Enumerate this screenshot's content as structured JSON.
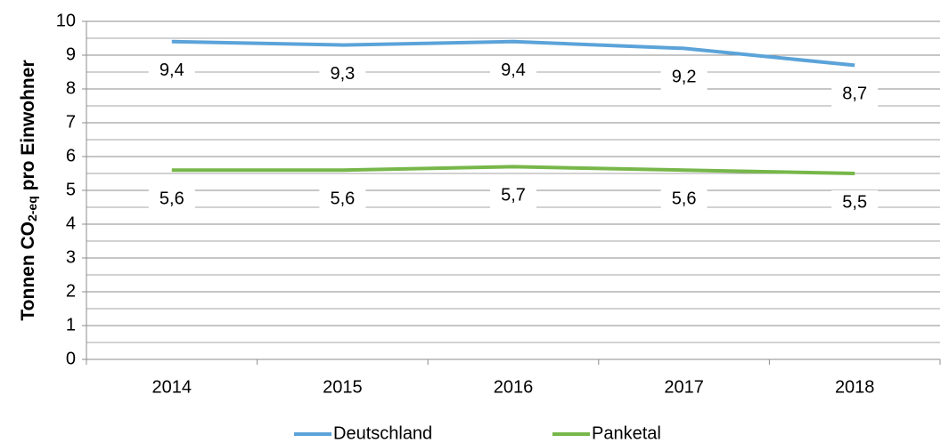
{
  "chart_data": {
    "type": "line",
    "y_label": [
      {
        "text": "Tonnen CO"
      },
      {
        "text": "2-eq",
        "sub": true
      },
      {
        "text": " pro Einwohner"
      }
    ],
    "categories": [
      "2014",
      "2015",
      "2016",
      "2017",
      "2018"
    ],
    "series": [
      {
        "name": "Deutschland",
        "color": "#5ba3d9",
        "values": [
          9.4,
          9.3,
          9.4,
          9.2,
          8.7
        ],
        "value_labels": [
          "9,4",
          "9,3",
          "9,4",
          "9,2",
          "8,7"
        ]
      },
      {
        "name": "Panketal",
        "color": "#77b74a",
        "values": [
          5.6,
          5.6,
          5.7,
          5.6,
          5.5
        ],
        "value_labels": [
          "5,6",
          "5,6",
          "5,7",
          "5,6",
          "5,5"
        ]
      }
    ],
    "ylim": [
      0,
      10
    ],
    "yticks": [
      0,
      1,
      2,
      3,
      4,
      5,
      6,
      7,
      8,
      9,
      10
    ],
    "grid": true,
    "minor_grid": true,
    "legend": "bottom"
  }
}
